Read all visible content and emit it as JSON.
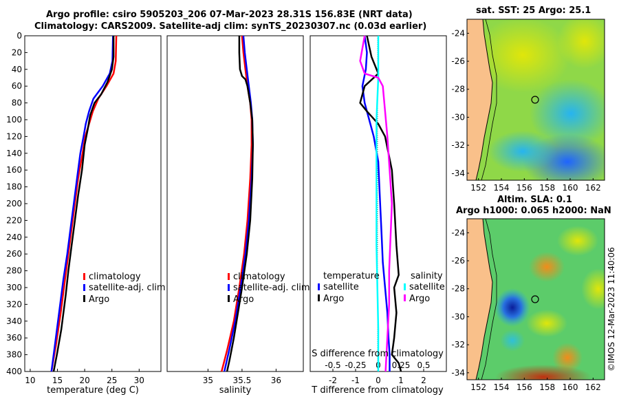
{
  "header": {
    "title_line1": "Argo profile: csiro 5905203_206 07-Mar-2023 28.31S 156.83E (NRT data)",
    "title_line2": "Climatology: CARS2009. Satellite-adj clim: synTS_20230307.nc (0.03d earlier)"
  },
  "colors": {
    "climatology": "#ff0000",
    "satellite": "#0000ff",
    "argo": "#000000",
    "sal_satellite": "#00ffff",
    "sal_argo": "#ff00ff"
  },
  "chart_data": [
    {
      "type": "line",
      "id": "temperature",
      "xlabel": "temperature (deg C)",
      "xlim": [
        9,
        34
      ],
      "ylim": [
        0,
        400
      ],
      "xticks": [
        "10",
        "15",
        "20",
        "25",
        "30"
      ],
      "yticks": [
        "0",
        "20",
        "40",
        "60",
        "80",
        "100",
        "120",
        "140",
        "160",
        "180",
        "200",
        "220",
        "240",
        "260",
        "280",
        "300",
        "320",
        "340",
        "360",
        "380",
        "400"
      ],
      "legend": [
        "climatology",
        "satellite-adj. clim",
        "Argo"
      ],
      "series": [
        {
          "name": "climatology",
          "x": [
            25.8,
            25.7,
            25.3,
            24.0,
            22.5,
            21.5,
            20.8,
            20.1,
            19.6,
            18.8,
            18.2,
            17.6,
            17.0,
            16.4,
            15.6,
            14.7,
            13.9
          ],
          "y": [
            0,
            30,
            45,
            60,
            75,
            90,
            105,
            120,
            140,
            170,
            200,
            230,
            260,
            290,
            330,
            370,
            400
          ]
        },
        {
          "name": "satellite-adj. clim",
          "x": [
            25.2,
            25.1,
            24.6,
            23.3,
            21.6,
            20.8,
            20.2,
            19.8,
            19.2,
            18.6,
            18.0,
            17.4,
            16.8,
            16.1,
            15.3,
            14.5,
            13.9
          ],
          "y": [
            0,
            30,
            45,
            60,
            75,
            90,
            105,
            120,
            140,
            170,
            200,
            230,
            260,
            290,
            330,
            370,
            400
          ]
        },
        {
          "name": "Argo",
          "x": [
            25.3,
            25.3,
            25.0,
            24.2,
            23.0,
            21.8,
            21.0,
            20.6,
            20.0,
            19.5,
            18.8,
            18.2,
            17.6,
            17.0,
            16.5,
            15.7,
            14.9,
            14.3
          ],
          "y": [
            0,
            25,
            40,
            55,
            70,
            80,
            95,
            110,
            130,
            160,
            190,
            220,
            250,
            280,
            310,
            350,
            380,
            400
          ]
        }
      ]
    },
    {
      "type": "line",
      "id": "salinity",
      "xlabel": "salinity",
      "xlim": [
        34.4,
        36.4
      ],
      "ylim": [
        0,
        400
      ],
      "xticks": [
        "35",
        "35.5",
        "36"
      ],
      "legend": [
        "climatology",
        "satellite-adj. clim",
        "Argo"
      ],
      "series": [
        {
          "name": "climatology",
          "x": [
            35.5,
            35.52,
            35.55,
            35.58,
            35.62,
            35.64,
            35.64,
            35.62,
            35.58,
            35.53,
            35.46,
            35.38,
            35.28,
            35.2
          ],
          "y": [
            0,
            20,
            40,
            60,
            80,
            100,
            130,
            170,
            220,
            260,
            300,
            340,
            375,
            400
          ]
        },
        {
          "name": "satellite-adj. clim",
          "x": [
            35.52,
            35.54,
            35.57,
            35.6,
            35.63,
            35.65,
            35.66,
            35.64,
            35.6,
            35.55,
            35.48,
            35.4,
            35.31,
            35.24
          ],
          "y": [
            0,
            20,
            40,
            60,
            80,
            100,
            130,
            170,
            220,
            260,
            300,
            340,
            375,
            400
          ]
        },
        {
          "name": "Argo",
          "x": [
            35.46,
            35.46,
            35.47,
            35.5,
            35.55,
            35.58,
            35.62,
            35.65,
            35.66,
            35.65,
            35.62,
            35.57,
            35.5,
            35.44,
            35.38,
            35.32,
            35.28
          ],
          "y": [
            0,
            20,
            40,
            48,
            52,
            60,
            80,
            100,
            130,
            170,
            220,
            260,
            300,
            330,
            360,
            385,
            400
          ]
        }
      ]
    },
    {
      "type": "line",
      "id": "difference",
      "xlabel": "T difference from climatology",
      "xlabel_top": "S difference from climatology",
      "xlim": [
        -3,
        3
      ],
      "ylim": [
        0,
        400
      ],
      "xticks": [
        "-2",
        "-1",
        "0",
        "1",
        "2"
      ],
      "xticks_top": [
        "-0.5",
        "-0.25",
        "0",
        "0.25",
        "0.5"
      ],
      "legend_temperature_title": "temperature",
      "legend_salinity_title": "salinity",
      "legend_temperature": [
        "satellite",
        "Argo"
      ],
      "legend_salinity": [
        "satellite",
        "Argo"
      ],
      "series": [
        {
          "name": "T satellite",
          "x": [
            -0.6,
            -0.5,
            -0.55,
            -0.7,
            -0.6,
            -0.4,
            -0.2,
            0.0,
            0.05,
            0.1,
            0.15,
            0.2,
            0.3,
            0.4,
            0.45,
            0.5,
            0.5
          ],
          "y": [
            0,
            20,
            40,
            60,
            80,
            100,
            120,
            150,
            180,
            210,
            240,
            270,
            300,
            330,
            360,
            380,
            400
          ]
        },
        {
          "name": "T Argo",
          "x": [
            -0.5,
            -0.3,
            0.0,
            -0.6,
            -0.8,
            -0.5,
            0.0,
            0.3,
            0.6,
            0.7,
            0.8,
            0.9,
            0.7,
            0.8,
            0.7,
            0.6,
            0.9,
            1.0
          ],
          "y": [
            0,
            25,
            45,
            60,
            80,
            90,
            105,
            120,
            160,
            200,
            250,
            285,
            300,
            330,
            360,
            380,
            390,
            400
          ]
        },
        {
          "name": "S satellite",
          "x": [
            0.0,
            0.0,
            -0.02,
            -0.02,
            -0.02,
            -0.02,
            -0.01,
            0.0,
            0.0
          ],
          "y": [
            0,
            50,
            100,
            150,
            200,
            250,
            300,
            350,
            400
          ]
        },
        {
          "name": "S Argo",
          "x": [
            -0.15,
            -0.2,
            -0.15,
            0.0,
            0.05,
            0.1,
            0.15,
            0.12,
            0.12,
            0.1,
            0.08
          ],
          "y": [
            0,
            30,
            45,
            50,
            60,
            120,
            200,
            280,
            320,
            360,
            400
          ]
        }
      ]
    },
    {
      "type": "heatmap",
      "id": "sst_map",
      "title": "sat. SST: 25 Argo: 25.1",
      "xlim": [
        151,
        163
      ],
      "ylim": [
        -34.5,
        -23
      ],
      "xticks": [
        "152",
        "154",
        "156",
        "158",
        "160",
        "162"
      ],
      "yticks": [
        "-24",
        "-26",
        "-28",
        "-30",
        "-32",
        "-34"
      ],
      "float_position": [
        156.83,
        -28.31
      ]
    },
    {
      "type": "heatmap",
      "id": "sla_map",
      "title_line1": "Altim. SLA: 0.1",
      "title_line2": "Argo h1000: 0.065 h2000: NaN",
      "xlim": [
        151,
        163
      ],
      "ylim": [
        -34.5,
        -23
      ],
      "xticks": [
        "152",
        "154",
        "156",
        "158",
        "160",
        "162"
      ],
      "yticks": [
        "-24",
        "-26",
        "-28",
        "-30",
        "-32",
        "-34"
      ],
      "float_position": [
        156.83,
        -28.31
      ]
    }
  ],
  "watermark": "©IMOS 12-Mar-2023 11:40:06"
}
